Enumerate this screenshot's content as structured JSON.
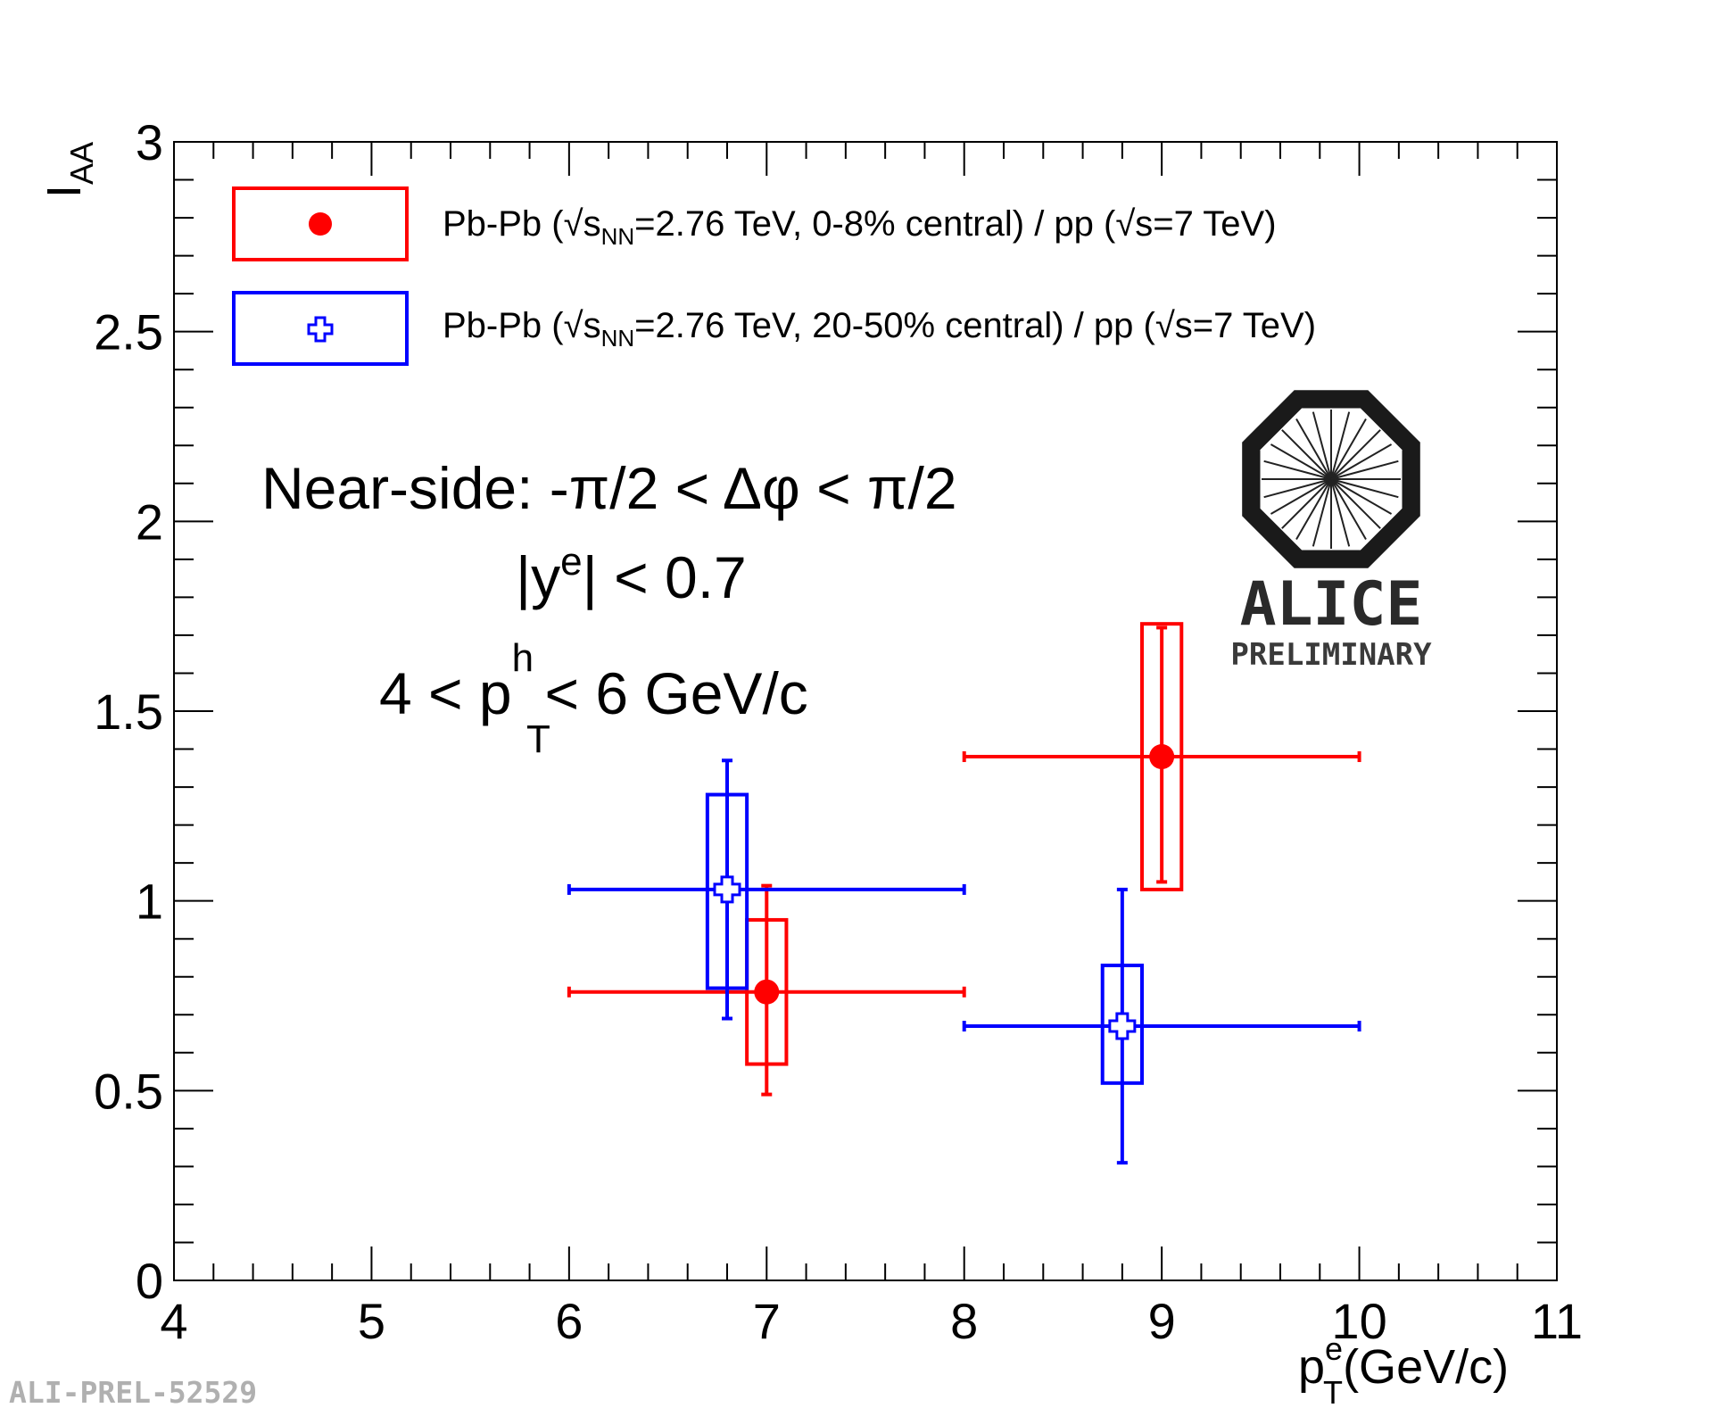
{
  "chart_data": {
    "type": "scatter",
    "xlabel_main": "p",
    "xlabel_sup": "e",
    "xlabel_sub": "T",
    "xlabel_unit": "(GeV/c)",
    "ylabel_main": "I",
    "ylabel_sub": "AA",
    "xlim": [
      4,
      11
    ],
    "ylim": [
      0,
      3
    ],
    "x_ticks": [
      "4",
      "5",
      "6",
      "7",
      "8",
      "9",
      "10",
      "11"
    ],
    "y_ticks": [
      "0",
      "0.5",
      "1",
      "1.5",
      "2",
      "2.5",
      "3"
    ],
    "series": [
      {
        "color": "#ff0000",
        "marker": "filled-circle",
        "legend": {
          "prefix": "Pb-Pb (",
          "s": "s",
          "sub": "NN",
          "middle": "=2.76 TeV, 0-8% central) / pp (",
          "s2": "s",
          "suffix": "=7 TeV)"
        },
        "points": [
          {
            "x": 7.0,
            "xerr_low": 1.0,
            "xerr_high": 1.0,
            "y": 0.76,
            "stat_low": 0.49,
            "stat_high": 1.04,
            "sys_low": 0.57,
            "sys_high": 0.95,
            "sys_x_low": 6.9,
            "sys_x_high": 7.1
          },
          {
            "x": 9.0,
            "xerr_low": 1.0,
            "xerr_high": 1.0,
            "y": 1.38,
            "stat_low": 1.05,
            "stat_high": 1.72,
            "sys_low": 1.03,
            "sys_high": 1.73,
            "sys_x_low": 8.9,
            "sys_x_high": 9.1
          }
        ]
      },
      {
        "color": "#0000ff",
        "marker": "open-cross",
        "legend": {
          "prefix": "Pb-Pb (",
          "s": "s",
          "sub": "NN",
          "middle": "=2.76 TeV, 20-50% central) / pp (",
          "s2": "s",
          "suffix": "=7 TeV)"
        },
        "points": [
          {
            "x": 6.8,
            "xerr_low": 0.8,
            "xerr_high": 1.2,
            "y": 1.03,
            "stat_low": 0.69,
            "stat_high": 1.37,
            "sys_low": 0.77,
            "sys_high": 1.28,
            "sys_x_low": 6.7,
            "sys_x_high": 6.9
          },
          {
            "x": 8.8,
            "xerr_low": 0.8,
            "xerr_high": 1.2,
            "y": 0.67,
            "stat_low": 0.31,
            "stat_high": 1.03,
            "sys_low": 0.52,
            "sys_high": 0.83,
            "sys_x_low": 8.7,
            "sys_x_high": 8.9
          }
        ]
      }
    ],
    "annotations": {
      "line1": "Near-side: -π/2 < Δφ < π/2",
      "line2_pre": "|y",
      "line2_sup": "e",
      "line2_post": "| < 0.7",
      "line3_pre": "4 < p",
      "line3_sup": "h",
      "line3_sub": "T",
      "line3_post": " < 6 GeV/c"
    }
  },
  "logo": {
    "name": "ALICE",
    "tag": "PRELIMINARY"
  },
  "figure_id": "ALI-PREL-52529"
}
